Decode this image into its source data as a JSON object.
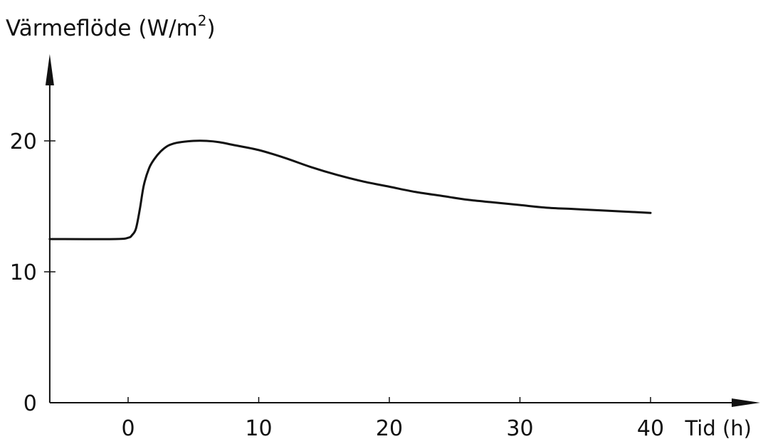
{
  "chart_data": {
    "type": "line",
    "title": "",
    "ylabel": "Värmeflöde (W/m",
    "ylabel_superscript": "2",
    "ylabel_close": ")",
    "xlabel": "Tid (h)",
    "xlim": [
      -6,
      40
    ],
    "ylim": [
      0,
      25
    ],
    "grid": false,
    "x_ticks": [
      0,
      10,
      20,
      30,
      40
    ],
    "x_tick_labels": [
      "0",
      "10",
      "20",
      "30",
      "40"
    ],
    "y_ticks": [
      0,
      10,
      20
    ],
    "y_tick_labels": [
      "0",
      "10",
      "20"
    ],
    "series": [
      {
        "x": [
          -6,
          -1,
          0,
          0.3,
          0.6,
          0.9,
          1.2,
          1.6,
          2,
          2.5,
          3,
          3.5,
          4,
          5,
          6,
          7,
          8,
          10,
          12,
          14,
          16,
          18,
          20,
          22,
          24,
          26,
          28,
          30,
          32,
          34,
          36,
          38,
          40
        ],
        "y": [
          12.5,
          12.5,
          12.6,
          12.8,
          13.3,
          14.8,
          16.6,
          17.9,
          18.6,
          19.2,
          19.6,
          19.8,
          19.9,
          20.0,
          20.0,
          19.9,
          19.7,
          19.3,
          18.7,
          18.0,
          17.4,
          16.9,
          16.5,
          16.1,
          15.8,
          15.5,
          15.3,
          15.1,
          14.9,
          14.8,
          14.7,
          14.6,
          14.5
        ]
      }
    ]
  }
}
